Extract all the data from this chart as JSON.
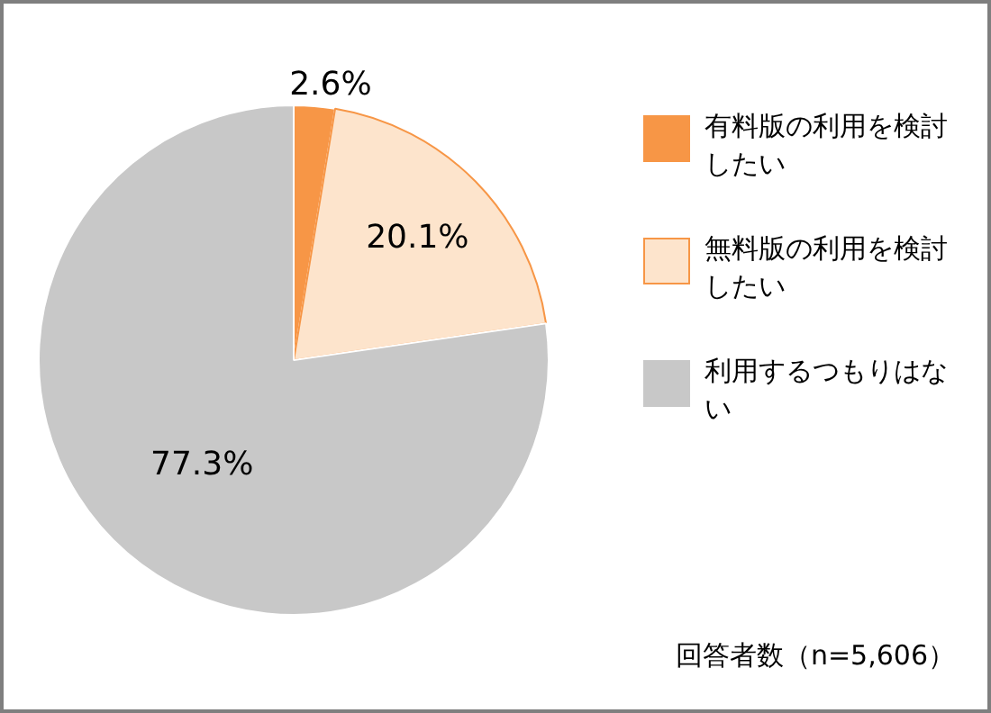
{
  "chart_data": {
    "type": "pie",
    "categories": [
      "有料版の利用を検討したい",
      "無料版の利用を検討したい",
      "利用するつもりはない"
    ],
    "values": [
      2.6,
      20.1,
      77.3
    ],
    "colors": [
      "#f79646",
      "#fde4cc",
      "#c8c8c8"
    ],
    "value_labels": [
      "2.6%",
      "20.1%",
      "77.3%"
    ],
    "legend": "right",
    "annotations": [
      "回答者数（n=5,606）"
    ]
  }
}
